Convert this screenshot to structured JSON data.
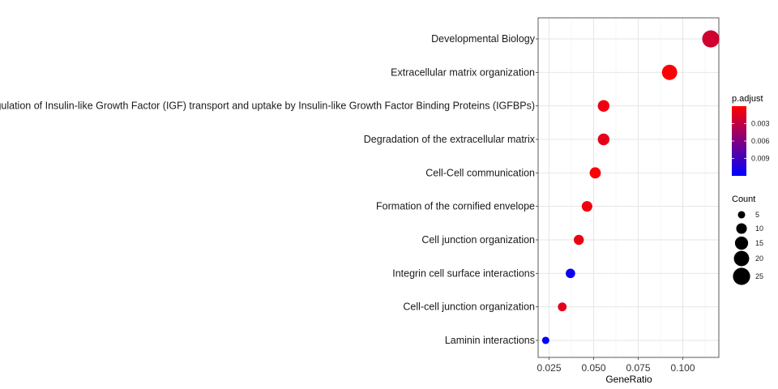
{
  "chart_data": {
    "type": "scatter",
    "title": "",
    "xlabel": "GeneRatio",
    "ylabel": "",
    "xlim": [
      0.02,
      0.12
    ],
    "x_ticks": [
      0.025,
      0.05,
      0.075,
      0.1
    ],
    "x_tick_labels": [
      "0.025",
      "0.050",
      "0.075",
      "0.100"
    ],
    "categories": [
      "Developmental Biology",
      "Extracellular matrix organization",
      "Regulation of Insulin-like Growth Factor (IGF) transport and uptake by Insulin-like Growth Factor Binding Proteins (IGFBPs)",
      "Degradation of the extracellular matrix",
      "Cell-Cell communication",
      "Formation of the cornified envelope",
      "Cell junction organization",
      "Integrin cell surface interactions",
      "Cell-cell junction organization",
      "Laminin interactions"
    ],
    "points": [
      {
        "category": "Developmental Biology",
        "x": 0.1157,
        "count": 25,
        "p_adjust": 0.0022
      },
      {
        "category": "Extracellular matrix organization",
        "x": 0.0926,
        "count": 20,
        "p_adjust": 0.0001
      },
      {
        "category": "Regulation of Insulin-like Growth Factor (IGF) transport and uptake by Insulin-like Growth Factor Binding Proteins (IGFBPs)",
        "x": 0.0556,
        "count": 12,
        "p_adjust": 0.0008
      },
      {
        "category": "Degradation of the extracellular matrix",
        "x": 0.0556,
        "count": 12,
        "p_adjust": 0.0012
      },
      {
        "category": "Cell-Cell communication",
        "x": 0.0509,
        "count": 11,
        "p_adjust": 0.0003
      },
      {
        "category": "Formation of the cornified envelope",
        "x": 0.0463,
        "count": 10,
        "p_adjust": 0.0007
      },
      {
        "category": "Cell junction organization",
        "x": 0.0417,
        "count": 9,
        "p_adjust": 0.0009
      },
      {
        "category": "Integrin cell surface interactions",
        "x": 0.037,
        "count": 8,
        "p_adjust": 0.0115
      },
      {
        "category": "Cell-cell junction organization",
        "x": 0.0324,
        "count": 7,
        "p_adjust": 0.0013
      },
      {
        "category": "Laminin interactions",
        "x": 0.0231,
        "count": 5,
        "p_adjust": 0.0118
      }
    ],
    "color_legend": {
      "title": "p.adjust",
      "low_color": "#ff0000",
      "high_color": "#0000ff",
      "range": [
        0,
        0.012
      ],
      "ticks": [
        0.003,
        0.006,
        0.009
      ],
      "tick_labels": [
        "0.003",
        "0.006",
        "0.009"
      ]
    },
    "size_legend": {
      "title": "Count",
      "values": [
        5,
        10,
        15,
        20,
        25
      ],
      "labels": [
        "5",
        "10",
        "15",
        "20",
        "25"
      ]
    },
    "grid": true,
    "legend_position": "right"
  }
}
